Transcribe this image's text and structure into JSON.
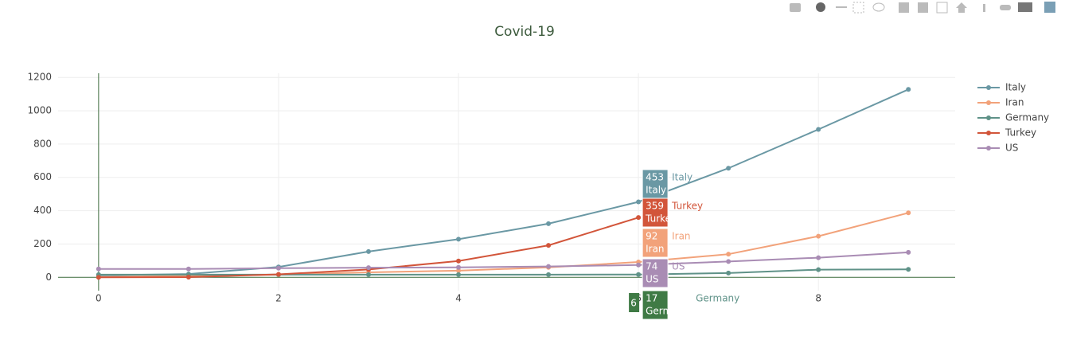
{
  "chart_data": {
    "type": "line",
    "title": "Covid-19",
    "x": [
      0,
      1,
      2,
      3,
      4,
      5,
      6,
      7,
      8,
      9
    ],
    "series": [
      {
        "name": "Italy",
        "color": "#6a98a4",
        "values": [
          12,
          20,
          62,
          155,
          229,
          322,
          453,
          655,
          888,
          1128
        ]
      },
      {
        "name": "Iran",
        "color": "#f2a27a",
        "values": [
          2,
          8,
          16,
          30,
          40,
          60,
          92,
          139,
          247,
          387
        ]
      },
      {
        "name": "Germany",
        "color": "#5f9288",
        "values": [
          16,
          16,
          16,
          16,
          16,
          16,
          17,
          26,
          46,
          48
        ]
      },
      {
        "name": "Turkey",
        "color": "#d2553a",
        "values": [
          0,
          1,
          18,
          47,
          98,
          192,
          359,
          null,
          null,
          null
        ]
      },
      {
        "name": "US",
        "color": "#a98cb4",
        "values": [
          50,
          50,
          55,
          58,
          60,
          65,
          74,
          95,
          118,
          150
        ]
      }
    ],
    "xlim": [
      -0.45,
      9.52
    ],
    "ylim": [
      -80,
      1225
    ],
    "xticks": [
      0,
      2,
      4,
      6,
      8
    ],
    "yticks": [
      0,
      200,
      400,
      600,
      800,
      1000,
      1200
    ],
    "grid": true,
    "legend": "right",
    "hover": {
      "x": 6
    }
  }
}
